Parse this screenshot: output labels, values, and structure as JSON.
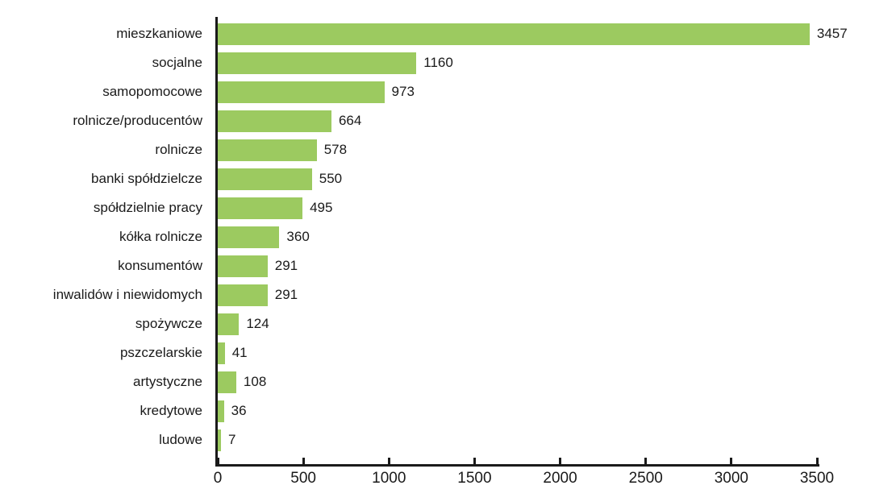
{
  "chart_data": {
    "type": "bar",
    "orientation": "horizontal",
    "title": "",
    "xlabel": "",
    "ylabel": "",
    "categories": [
      "mieszkaniowe",
      "socjalne",
      "samopomocowe",
      "rolnicze/producentów",
      "rolnicze",
      "banki spółdzielcze",
      "spółdzielnie pracy",
      "kółka rolnicze",
      "konsumentów",
      "inwalidów i niewidomych",
      "spożywcze",
      "pszczelarskie",
      "artystyczne",
      "kredytowe",
      "ludowe"
    ],
    "values": [
      3457,
      1160,
      973,
      664,
      578,
      550,
      495,
      360,
      291,
      291,
      124,
      41,
      108,
      36,
      7
    ],
    "value_labels_shown": true,
    "xlim": [
      0,
      3500
    ],
    "x_ticks": [
      0,
      500,
      1000,
      1500,
      2000,
      2500,
      3000,
      3500
    ],
    "grid": false,
    "legend": "none",
    "bar_color": "#9cca60",
    "axis_color": "#1a1a1a",
    "text_color": "#1a1a1a",
    "background": "#ffffff"
  }
}
